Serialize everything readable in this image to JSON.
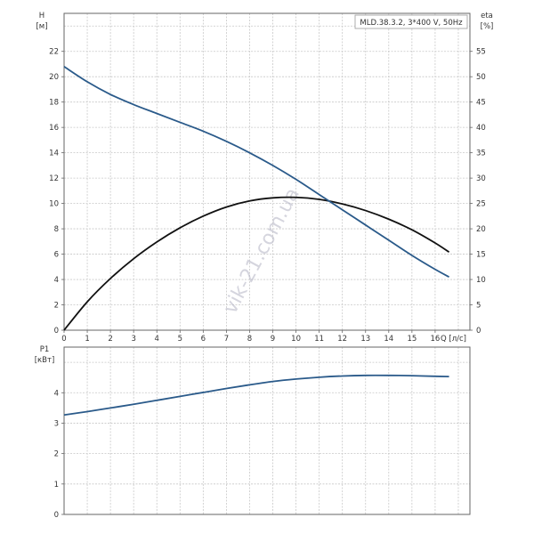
{
  "colors": {
    "head_curve": "#2a5a8a",
    "eta_curve": "#111111",
    "power_curve": "#2a5a8a"
  },
  "legend": "MLD.38.3.2, 3*400 V, 50Hz",
  "watermark": "vik-21.com.ua",
  "chart_data": [
    {
      "type": "line",
      "name": "head-efficiency",
      "y_left_label": [
        "H",
        "[м]"
      ],
      "y_right_label": [
        "eta",
        "[%]"
      ],
      "x_label": "Q [л/с]",
      "xlim": [
        0,
        17.5
      ],
      "ylim_left": [
        0,
        25
      ],
      "ylim_right": [
        0,
        62.5
      ],
      "x_ticks": [
        "0",
        "1",
        "2",
        "3",
        "4",
        "5",
        "6",
        "7",
        "8",
        "9",
        "10",
        "11",
        "12",
        "13",
        "14",
        "15",
        "16"
      ],
      "y_left_ticks": [
        "0",
        "2",
        "4",
        "6",
        "8",
        "10",
        "12",
        "14",
        "16",
        "18",
        "20",
        "22"
      ],
      "y_right_ticks": [
        "0",
        "5",
        "10",
        "15",
        "20",
        "25",
        "30",
        "35",
        "40",
        "45",
        "50",
        "55"
      ],
      "grid": true,
      "series": [
        {
          "key": "H",
          "axis": "left",
          "x": [
            0,
            1,
            2,
            3,
            4,
            5,
            6,
            7,
            8,
            9,
            10,
            11,
            12,
            13,
            14,
            15,
            16,
            16.6
          ],
          "y": [
            20.8,
            19.6,
            18.6,
            17.8,
            17.1,
            16.4,
            15.7,
            14.9,
            14.0,
            13.0,
            11.9,
            10.7,
            9.5,
            8.3,
            7.1,
            5.9,
            4.8,
            4.2
          ]
        },
        {
          "key": "eta",
          "axis": "right",
          "x": [
            0,
            1,
            2,
            3,
            4,
            5,
            6,
            7,
            8,
            9,
            10,
            11,
            12,
            13,
            14,
            15,
            16,
            16.6
          ],
          "y": [
            0,
            5.6,
            10.2,
            14.1,
            17.4,
            20.2,
            22.5,
            24.3,
            25.5,
            26.1,
            26.2,
            25.8,
            24.9,
            23.6,
            21.9,
            19.8,
            17.2,
            15.4
          ]
        }
      ]
    },
    {
      "type": "line",
      "name": "power",
      "y_label": [
        "P1",
        "[кВт]"
      ],
      "xlim": [
        0,
        17.5
      ],
      "ylim": [
        0,
        5.5
      ],
      "y_ticks": [
        "0",
        "1",
        "2",
        "3",
        "4"
      ],
      "grid": true,
      "series": [
        {
          "key": "P1",
          "x": [
            0,
            1,
            2,
            3,
            4,
            5,
            6,
            7,
            8,
            9,
            10,
            11,
            12,
            13,
            14,
            15,
            16,
            16.6
          ],
          "y": [
            3.27,
            3.38,
            3.5,
            3.62,
            3.75,
            3.88,
            4.01,
            4.14,
            4.26,
            4.37,
            4.45,
            4.51,
            4.55,
            4.57,
            4.57,
            4.56,
            4.54,
            4.53
          ]
        }
      ]
    }
  ]
}
